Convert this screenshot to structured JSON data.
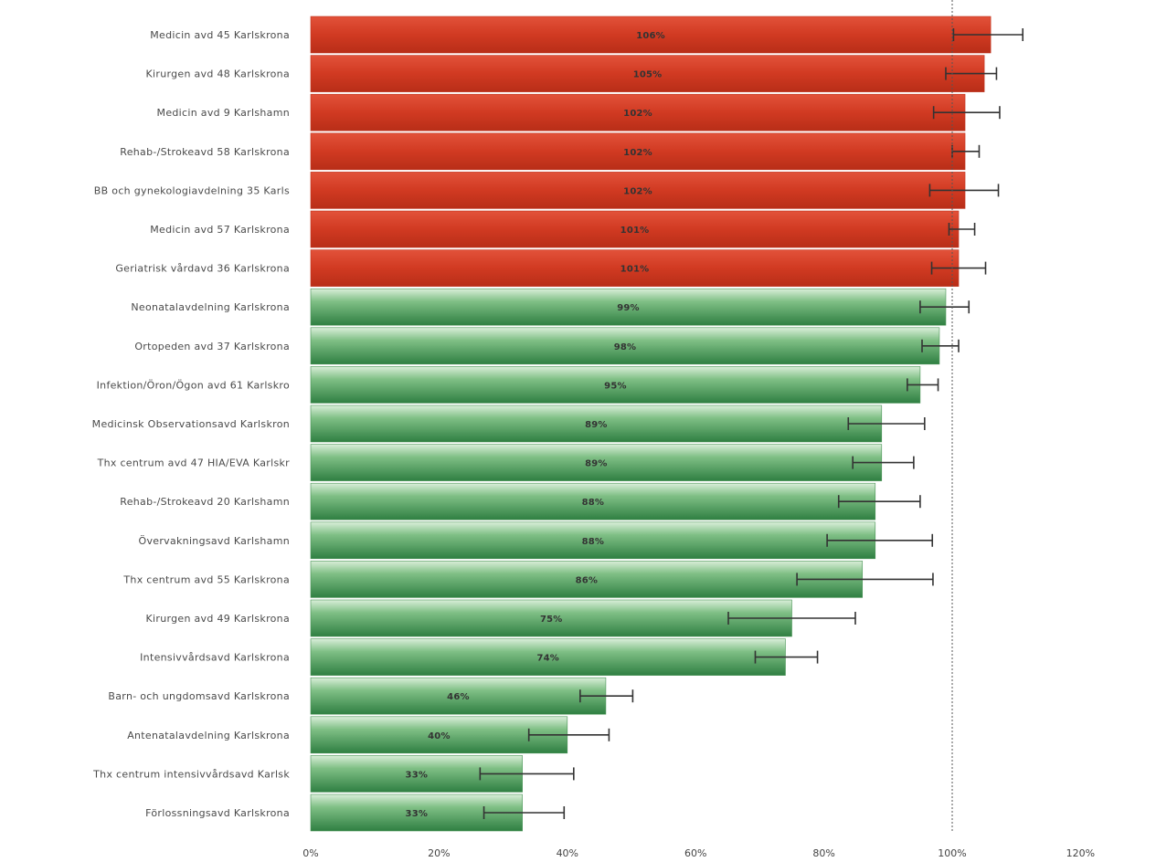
{
  "chart_data": {
    "type": "bar",
    "orientation": "horizontal",
    "categories": [
      "Medicin avd 45 Karlskrona",
      "Kirurgen avd 48 Karlskrona",
      "Medicin avd 9 Karlshamn",
      "Rehab-/Strokeavd 58 Karlskrona",
      "BB och gynekologiavdelning 35 Karls",
      "Medicin avd 57 Karlskrona",
      "Geriatrisk vårdavd 36 Karlskrona",
      "Neonatalavdelning Karlskrona",
      "Ortopeden avd 37 Karlskrona",
      "Infektion/Öron/Ögon avd 61 Karlskro",
      "Medicinsk Observationsavd Karlskron",
      "Thx centrum avd 47 HIA/EVA Karlskr",
      "Rehab-/Strokeavd 20 Karlshamn",
      "Övervakningsavd Karlshamn",
      "Thx centrum avd 55 Karlskrona",
      "Kirurgen avd 49 Karlskrona",
      "Intensivvårdsavd Karlskrona",
      "Barn- och ungdomsavd Karlskrona",
      "Antenatalavdelning Karlskrona",
      "Thx centrum intensivvårdsavd Karlsk",
      "Förlossningsavd Karlskrona"
    ],
    "values": [
      106,
      105,
      102,
      102,
      102,
      101,
      101,
      99,
      98,
      95,
      89,
      89,
      88,
      88,
      86,
      75,
      74,
      46,
      40,
      33,
      33
    ],
    "value_labels": [
      "106%",
      "105%",
      "102%",
      "102%",
      "102%",
      "101%",
      "101%",
      "99%",
      "98%",
      "95%",
      "89%",
      "89%",
      "88%",
      "88%",
      "86%",
      "75%",
      "74%",
      "46%",
      "40%",
      "33%",
      "33%"
    ],
    "error_low": [
      100.2,
      99.0,
      97.1,
      100.0,
      96.5,
      99.5,
      96.8,
      95.0,
      95.3,
      93.0,
      83.8,
      84.5,
      82.3,
      80.5,
      75.8,
      65.1,
      69.3,
      42.0,
      34.0,
      26.4,
      27.0
    ],
    "error_high": [
      111.0,
      106.9,
      107.4,
      104.2,
      107.2,
      103.5,
      105.2,
      102.6,
      101.0,
      97.8,
      95.7,
      94.0,
      95.0,
      96.9,
      97.0,
      84.9,
      79.0,
      50.2,
      46.5,
      41.0,
      39.5
    ],
    "reference_line": 100,
    "xlim": [
      0,
      128
    ],
    "xticks": [
      0,
      20,
      40,
      60,
      80,
      100,
      120
    ],
    "xtick_labels": [
      "0%",
      "20%",
      "40%",
      "60%",
      "80%",
      "100%",
      "120%"
    ],
    "over_threshold_color": "#d13a22",
    "under_threshold_color": "#3f8f4f",
    "title": "",
    "xlabel": "",
    "ylabel": ""
  }
}
